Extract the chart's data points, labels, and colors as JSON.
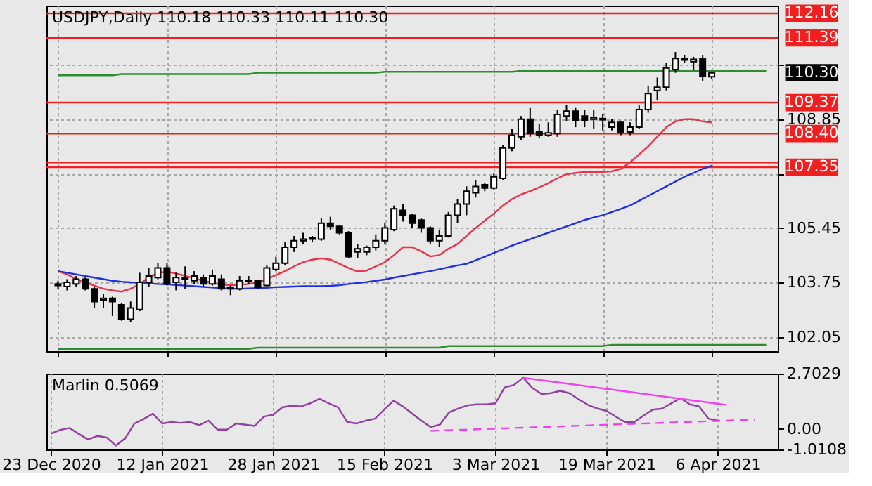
{
  "chart_data": [
    {
      "type": "candlestick",
      "title": "USDJPY,Daily 110.18 110.33 110.11 110.30",
      "categories": [
        null,
        null,
        null,
        null,
        null,
        null,
        null,
        null,
        null,
        null,
        null,
        null,
        null,
        null,
        null,
        null,
        null,
        null,
        null,
        null,
        null,
        null,
        null,
        null,
        null,
        null,
        null,
        null,
        null,
        null,
        null,
        null,
        null,
        null,
        null,
        null,
        null,
        null,
        null,
        null,
        null,
        null,
        null,
        null,
        null,
        null,
        null,
        null,
        null,
        null,
        null,
        null,
        null,
        null,
        null,
        null,
        null,
        null,
        null,
        null,
        null,
        null,
        null,
        null,
        null,
        null,
        null,
        null,
        null,
        null,
        null,
        null,
        null,
        null,
        null,
        null,
        null,
        null,
        null
      ],
      "ohlc": [
        [
          103.7,
          103.8,
          103.55,
          103.65
        ],
        [
          103.62,
          103.85,
          103.5,
          103.75
        ],
        [
          103.7,
          103.95,
          103.6,
          103.85
        ],
        [
          103.85,
          103.9,
          103.5,
          103.55
        ],
        [
          103.55,
          103.6,
          102.95,
          103.15
        ],
        [
          103.2,
          103.4,
          102.95,
          103.25
        ],
        [
          103.25,
          103.3,
          102.7,
          103.15
        ],
        [
          103.05,
          103.1,
          102.55,
          102.6
        ],
        [
          102.6,
          103.15,
          102.5,
          102.95
        ],
        [
          102.9,
          104.05,
          102.85,
          103.75
        ],
        [
          103.75,
          104.2,
          103.6,
          103.95
        ],
        [
          103.9,
          104.35,
          103.85,
          104.2
        ],
        [
          104.2,
          104.35,
          103.65,
          103.7
        ],
        [
          103.75,
          104.05,
          103.5,
          103.9
        ],
        [
          103.9,
          104.25,
          103.55,
          103.85
        ],
        [
          103.8,
          104.1,
          103.7,
          103.95
        ],
        [
          103.9,
          104.0,
          103.6,
          103.7
        ],
        [
          103.7,
          104.15,
          103.65,
          103.95
        ],
        [
          103.85,
          104.0,
          103.5,
          103.55
        ],
        [
          103.6,
          103.65,
          103.35,
          103.55
        ],
        [
          103.55,
          103.95,
          103.5,
          103.8
        ],
        [
          103.8,
          103.95,
          103.7,
          103.78
        ],
        [
          103.8,
          103.8,
          103.55,
          103.6
        ],
        [
          103.65,
          104.3,
          103.6,
          104.2
        ],
        [
          104.15,
          104.55,
          104.1,
          104.35
        ],
        [
          104.35,
          105.0,
          104.3,
          104.85
        ],
        [
          104.85,
          105.2,
          104.7,
          105.05
        ],
        [
          105.05,
          105.3,
          104.95,
          105.1
        ],
        [
          105.15,
          105.2,
          105.0,
          105.1
        ],
        [
          105.1,
          105.75,
          105.05,
          105.6
        ],
        [
          105.6,
          105.8,
          105.4,
          105.5
        ],
        [
          105.5,
          105.55,
          105.25,
          105.3
        ],
        [
          105.3,
          105.35,
          104.5,
          104.55
        ],
        [
          104.7,
          104.95,
          104.5,
          104.8
        ],
        [
          104.7,
          104.9,
          104.6,
          104.85
        ],
        [
          104.85,
          105.25,
          104.75,
          105.05
        ],
        [
          105.05,
          105.6,
          104.95,
          105.45
        ],
        [
          105.4,
          106.15,
          105.35,
          106.05
        ],
        [
          106.0,
          106.2,
          105.65,
          105.85
        ],
        [
          105.85,
          105.9,
          105.45,
          105.6
        ],
        [
          105.7,
          105.75,
          105.3,
          105.45
        ],
        [
          105.45,
          105.5,
          104.95,
          105.05
        ],
        [
          105.05,
          105.4,
          104.85,
          105.2
        ],
        [
          105.2,
          105.95,
          105.15,
          105.85
        ],
        [
          105.85,
          106.35,
          105.6,
          106.2
        ],
        [
          106.2,
          106.75,
          105.85,
          106.6
        ],
        [
          106.55,
          106.95,
          106.4,
          106.75
        ],
        [
          106.8,
          106.85,
          106.6,
          106.7
        ],
        [
          106.7,
          107.15,
          106.65,
          107.05
        ],
        [
          107.0,
          108.05,
          106.95,
          107.95
        ],
        [
          107.95,
          108.55,
          107.85,
          108.35
        ],
        [
          108.3,
          108.95,
          108.2,
          108.85
        ],
        [
          108.85,
          109.2,
          108.3,
          108.4
        ],
        [
          108.45,
          108.7,
          108.25,
          108.35
        ],
        [
          108.35,
          108.75,
          108.3,
          108.42
        ],
        [
          108.4,
          109.15,
          108.3,
          109.0
        ],
        [
          108.95,
          109.3,
          108.8,
          109.1
        ],
        [
          109.1,
          109.2,
          108.6,
          108.8
        ],
        [
          108.95,
          109.15,
          108.6,
          108.8
        ],
        [
          108.85,
          109.15,
          108.55,
          108.9
        ],
        [
          108.83,
          109.0,
          108.5,
          108.87
        ],
        [
          108.6,
          108.85,
          108.5,
          108.75
        ],
        [
          108.75,
          108.8,
          108.35,
          108.45
        ],
        [
          108.45,
          108.75,
          108.35,
          108.6
        ],
        [
          108.6,
          109.3,
          108.55,
          109.15
        ],
        [
          109.15,
          109.9,
          109.05,
          109.65
        ],
        [
          109.75,
          110.15,
          109.45,
          109.85
        ],
        [
          109.85,
          110.6,
          109.75,
          110.45
        ],
        [
          110.4,
          110.95,
          110.3,
          110.75
        ],
        [
          110.75,
          110.85,
          110.6,
          110.7
        ],
        [
          110.65,
          110.8,
          110.4,
          110.72
        ],
        [
          110.75,
          110.85,
          110.05,
          110.2
        ],
        [
          110.18,
          110.33,
          110.11,
          110.3
        ],
        null,
        null,
        null,
        null,
        null,
        null
      ],
      "series": [
        {
          "type": "line",
          "color": "#e8334a",
          "values": [
            104.1,
            104.0,
            103.85,
            103.75,
            103.65,
            103.55,
            103.5,
            103.46,
            103.55,
            103.7,
            103.9,
            104.05,
            104.08,
            104.03,
            103.95,
            103.88,
            103.8,
            103.74,
            103.68,
            103.66,
            103.67,
            103.7,
            103.75,
            103.85,
            103.98,
            104.1,
            104.25,
            104.38,
            104.46,
            104.5,
            104.46,
            104.33,
            104.2,
            104.09,
            104.12,
            104.25,
            104.38,
            104.6,
            104.85,
            104.85,
            104.72,
            104.56,
            104.6,
            104.8,
            104.95,
            105.2,
            105.45,
            105.68,
            105.9,
            106.15,
            106.35,
            106.5,
            106.6,
            106.72,
            106.85,
            107.0,
            107.13,
            107.17,
            107.2,
            107.2,
            107.2,
            107.22,
            107.3,
            107.5,
            107.75,
            108.0,
            108.3,
            108.6,
            108.78,
            108.85,
            108.85,
            108.78,
            108.75,
            null,
            null,
            null,
            null,
            null,
            null
          ]
        },
        {
          "type": "line",
          "color": "#2030e0",
          "values": [
            104.1,
            104.05,
            104.0,
            103.95,
            103.9,
            103.85,
            103.8,
            103.77,
            103.75,
            103.74,
            103.72,
            103.7,
            103.69,
            103.67,
            103.65,
            103.63,
            103.61,
            103.59,
            103.57,
            103.55,
            103.55,
            103.56,
            103.57,
            103.58,
            103.6,
            103.61,
            103.62,
            103.63,
            103.63,
            103.63,
            103.64,
            103.66,
            103.7,
            103.73,
            103.76,
            103.8,
            103.84,
            103.9,
            103.95,
            104.0,
            104.05,
            104.1,
            104.16,
            104.22,
            104.28,
            104.33,
            104.44,
            104.55,
            104.67,
            104.78,
            104.9,
            105.0,
            105.1,
            105.2,
            105.3,
            105.4,
            105.5,
            105.6,
            105.7,
            105.78,
            105.85,
            105.95,
            106.05,
            106.15,
            106.3,
            106.45,
            106.6,
            106.75,
            106.9,
            107.05,
            107.17,
            107.3,
            107.4,
            null,
            null,
            null,
            null,
            null,
            null
          ]
        },
        {
          "type": "line",
          "color": "#2e8b2e",
          "values": [
            110.22,
            110.22,
            110.22,
            110.22,
            110.22,
            110.22,
            110.22,
            110.26,
            110.26,
            110.26,
            110.26,
            110.26,
            110.26,
            110.26,
            110.26,
            110.26,
            110.26,
            110.26,
            110.26,
            110.26,
            110.26,
            110.26,
            110.3,
            110.3,
            110.3,
            110.3,
            110.3,
            110.3,
            110.3,
            110.3,
            110.3,
            110.3,
            110.3,
            110.3,
            110.3,
            110.3,
            110.33,
            110.33,
            110.33,
            110.33,
            110.33,
            110.33,
            110.33,
            110.33,
            110.33,
            110.33,
            110.33,
            110.33,
            110.33,
            110.33,
            110.33,
            110.36,
            110.36,
            110.36,
            110.36,
            110.36,
            110.36,
            110.36,
            110.36,
            110.36,
            110.36,
            110.36,
            110.36,
            110.36,
            110.36,
            110.36,
            110.36,
            110.36,
            110.36,
            110.36,
            110.36,
            110.36,
            110.36,
            110.36,
            110.36,
            110.36,
            110.36,
            110.36,
            110.36
          ]
        },
        {
          "type": "line",
          "color": "#2e8b2e",
          "values": [
            101.67,
            101.67,
            101.67,
            101.67,
            101.67,
            101.67,
            101.67,
            101.67,
            101.67,
            101.67,
            101.67,
            101.67,
            101.67,
            101.67,
            101.67,
            101.67,
            101.67,
            101.67,
            101.67,
            101.67,
            101.67,
            101.67,
            101.71,
            101.71,
            101.71,
            101.71,
            101.71,
            101.71,
            101.71,
            101.71,
            101.71,
            101.71,
            101.71,
            101.71,
            101.71,
            101.71,
            101.71,
            101.71,
            101.71,
            101.71,
            101.71,
            101.71,
            101.71,
            101.76,
            101.76,
            101.76,
            101.76,
            101.76,
            101.76,
            101.76,
            101.76,
            101.76,
            101.76,
            101.76,
            101.76,
            101.76,
            101.76,
            101.76,
            101.76,
            101.76,
            101.76,
            101.8,
            101.8,
            101.8,
            101.8,
            101.8,
            101.8,
            101.8,
            101.8,
            101.8,
            101.8,
            101.8,
            101.8,
            101.8,
            101.8,
            101.8,
            101.8,
            101.8,
            101.8
          ]
        }
      ],
      "ref_lines": [
        {
          "axis": "y",
          "value": 112.16,
          "label": "112.16",
          "color": "#f02020"
        },
        {
          "axis": "y",
          "value": 111.39,
          "label": "111.39",
          "color": "#f02020"
        },
        {
          "axis": "y",
          "value": 109.37,
          "label": "109.37",
          "color": "#f02020"
        },
        {
          "axis": "y",
          "value": 108.4,
          "label": "108.40",
          "color": "#f02020"
        },
        {
          "axis": "y",
          "value": 107.5,
          "label": null,
          "color": "#f02020"
        },
        {
          "axis": "y",
          "value": 107.35,
          "label": "107.35",
          "color": "#f02020"
        }
      ],
      "annotations": [
        "110.30"
      ],
      "ylim": [
        101.6,
        112.4
      ],
      "yticks": [
        {
          "value": 110.55,
          "label": null
        },
        108.85,
        {
          "value": 107.15,
          "label": null
        },
        105.45,
        103.75,
        102.05
      ],
      "grid": true,
      "tick_labels": "y"
    },
    {
      "type": "line",
      "title": "Marlin 0.5069",
      "categories": [
        "23 Dec 2020",
        null,
        null,
        null,
        null,
        null,
        null,
        null,
        null,
        null,
        null,
        null,
        "12 Jan 2021",
        null,
        null,
        null,
        null,
        null,
        null,
        null,
        null,
        null,
        null,
        null,
        "28 Jan 2021",
        null,
        null,
        null,
        null,
        null,
        null,
        null,
        null,
        null,
        null,
        null,
        "15 Feb 2021",
        null,
        null,
        null,
        null,
        null,
        null,
        null,
        null,
        null,
        null,
        null,
        "3 Mar 2021",
        null,
        null,
        null,
        null,
        null,
        null,
        null,
        null,
        null,
        null,
        null,
        "19 Mar 2021",
        null,
        null,
        null,
        null,
        null,
        null,
        null,
        null,
        null,
        null,
        null,
        "6 Apr 2021",
        null,
        null,
        null,
        null,
        null,
        null
      ],
      "series": [
        {
          "color": "#9040a0",
          "values": [
            -0.23,
            -0.05,
            0.04,
            -0.25,
            -0.52,
            -0.35,
            -0.42,
            -0.82,
            -0.47,
            0.26,
            0.48,
            0.74,
            0.26,
            0.33,
            0.29,
            0.33,
            0.18,
            0.4,
            -0.04,
            -0.04,
            0.26,
            0.2,
            0.14,
            0.6,
            0.69,
            1.06,
            1.13,
            1.1,
            1.25,
            1.47,
            1.25,
            1.06,
            0.33,
            0.26,
            0.4,
            0.5,
            0.95,
            1.38,
            1.1,
            0.75,
            0.4,
            0.09,
            0.2,
            0.81,
            1.0,
            1.15,
            1.2,
            1.2,
            1.25,
            2.03,
            2.15,
            2.5,
            2.0,
            1.7,
            1.75,
            1.86,
            1.74,
            1.45,
            1.17,
            1.0,
            0.88,
            0.6,
            0.33,
            0.33,
            0.65,
            0.94,
            0.99,
            1.25,
            1.5,
            1.2,
            1.1,
            0.5,
            0.4,
            null,
            null,
            null,
            null,
            null,
            null
          ]
        },
        {
          "color": "#f040f0",
          "line_style": "solid",
          "values": [
            null,
            null,
            null,
            null,
            null,
            null,
            null,
            null,
            null,
            null,
            null,
            null,
            null,
            null,
            null,
            null,
            null,
            null,
            null,
            null,
            null,
            null,
            null,
            null,
            null,
            null,
            null,
            null,
            null,
            null,
            null,
            null,
            null,
            null,
            null,
            null,
            null,
            null,
            null,
            null,
            null,
            null,
            null,
            null,
            null,
            null,
            null,
            null,
            null,
            null,
            null,
            2.5,
            null,
            null,
            null,
            null,
            null,
            null,
            null,
            null,
            null,
            null,
            null,
            null,
            null,
            null,
            null,
            null,
            null,
            null,
            null,
            null,
            null,
            1.17,
            null,
            null,
            null,
            null,
            null
          ]
        },
        {
          "color": "#f040f0",
          "line_style": "dashed",
          "values": [
            null,
            null,
            null,
            null,
            null,
            null,
            null,
            null,
            null,
            null,
            null,
            null,
            null,
            null,
            null,
            null,
            null,
            null,
            null,
            null,
            null,
            null,
            null,
            null,
            null,
            null,
            null,
            null,
            null,
            null,
            null,
            null,
            null,
            null,
            null,
            null,
            null,
            null,
            null,
            null,
            null,
            -0.1,
            null,
            null,
            null,
            null,
            null,
            null,
            null,
            null,
            null,
            null,
            null,
            null,
            null,
            null,
            null,
            null,
            null,
            null,
            null,
            null,
            null,
            null,
            null,
            null,
            null,
            null,
            null,
            null,
            null,
            null,
            null,
            null,
            null,
            null,
            0.45,
            null,
            null
          ]
        }
      ],
      "ylim": [
        -1.0108,
        2.7029
      ],
      "yticks": [
        2.7029,
        {
          "value": 0,
          "label": "0.00"
        },
        -1.0108
      ],
      "grid": "x"
    }
  ]
}
